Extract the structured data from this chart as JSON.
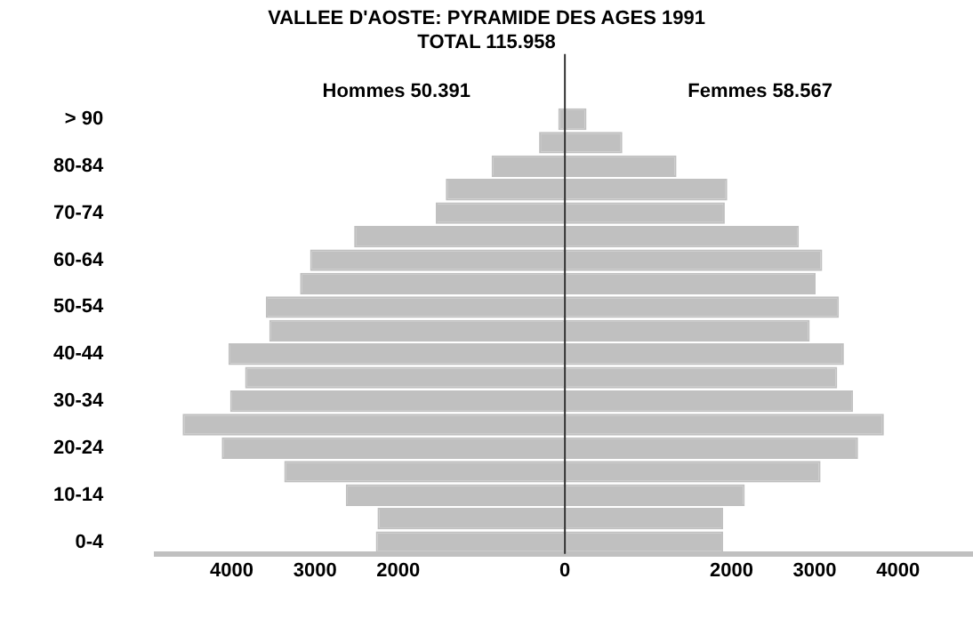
{
  "chart_data": {
    "type": "bar",
    "orientation": "horizontal",
    "stacked": true,
    "title": "VALLEE D'AOSTE: PYRAMIDE DES AGES 1991",
    "subtitle": "TOTAL 115.958",
    "categories": [
      "> 90",
      null,
      "80-84",
      null,
      "70-74",
      null,
      "60-64",
      null,
      "50-54",
      null,
      "40-44",
      null,
      "30-34",
      null,
      "20-24",
      null,
      "10-14",
      null,
      "0-4"
    ],
    "series": [
      {
        "name": "Hommes 50.391",
        "color": "#c0c0c0",
        "values": [
          -80,
          -310,
          -880,
          -1430,
          -1550,
          -2530,
          -3060,
          -3180,
          -3590,
          -3550,
          -4040,
          -3840,
          -4020,
          -4590,
          -4120,
          -3370,
          -2630,
          -2250,
          -2270
        ]
      },
      {
        "name": "Femmes 58.567",
        "color": "#c0c0c0",
        "values": [
          260,
          690,
          1340,
          1950,
          1920,
          2810,
          3090,
          3010,
          3290,
          2940,
          3350,
          3270,
          3460,
          3830,
          3520,
          3070,
          2160,
          1900,
          1900
        ]
      }
    ],
    "xlim": [
      -4900,
      4900
    ],
    "xticks": [
      {
        "value": -4000,
        "label": "4000"
      },
      {
        "value": -3000,
        "label": "3000"
      },
      {
        "value": -2000,
        "label": "2000"
      },
      0,
      2000,
      3000,
      4000
    ],
    "ref_lines": [
      {
        "axis": "x",
        "value": 0,
        "color": "#333333"
      }
    ],
    "grid": false,
    "legend": false
  }
}
